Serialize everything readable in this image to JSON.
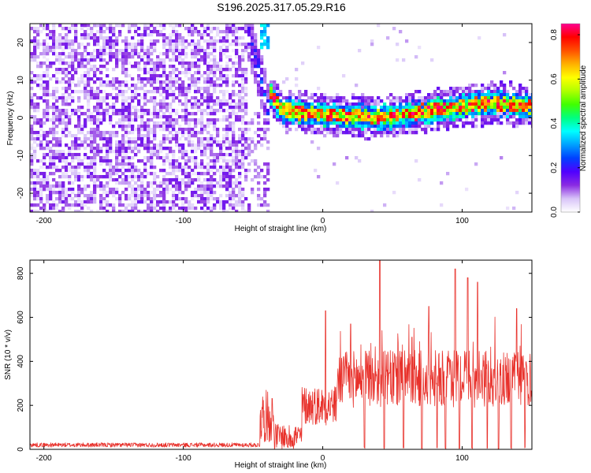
{
  "title": "S196.2025.317.05.29.R16",
  "chart_data": [
    {
      "type": "heatmap",
      "title": "S196.2025.317.05.29.R16",
      "xlabel": "Height of straight line (km)",
      "ylabel": "Frequency (Hz)",
      "xlim": [
        -210,
        150
      ],
      "ylim": [
        -25,
        25
      ],
      "x_ticks": [
        -200,
        -100,
        0,
        100
      ],
      "y_ticks": [
        -20,
        -10,
        0,
        10,
        20
      ],
      "colorbar": {
        "label": "Normalized spectral amplitude",
        "range": [
          0.0,
          0.85
        ],
        "ticks": [
          0.0,
          0.2,
          0.4,
          0.6,
          0.8
        ],
        "colors": [
          "#ffffff",
          "#d8c4f8",
          "#8a2be2",
          "#5000ff",
          "#0040ff",
          "#00a0ff",
          "#00ffff",
          "#00ff80",
          "#40ff00",
          "#b0ff00",
          "#ffff00",
          "#ffb000",
          "#ff5000",
          "#ff0000",
          "#ff0090"
        ]
      },
      "features": [
        {
          "name": "noise",
          "x_range": [
            -210,
            -55
          ],
          "freq_range": [
            -25,
            25
          ],
          "amplitude": [
            0.0,
            0.15
          ]
        },
        {
          "name": "transition_streak",
          "x_range": [
            -55,
            -40
          ],
          "freq_range": [
            -5,
            25
          ],
          "amplitude": [
            0.05,
            0.35
          ]
        },
        {
          "name": "central_line",
          "x_range": [
            -38,
            150
          ],
          "freq_center": [
            7,
            2,
            1,
            0,
            1,
            2,
            3,
            4,
            3
          ],
          "freq_center_x": [
            -38,
            -30,
            0,
            40,
            60,
            80,
            100,
            120,
            150
          ],
          "amplitude_peak": 0.85
        }
      ]
    },
    {
      "type": "line",
      "xlabel": "Height of straight line (km)",
      "ylabel": "SNR (10 * v/v)",
      "xlim": [
        -210,
        150
      ],
      "ylim": [
        0,
        860
      ],
      "x_ticks": [
        -200,
        -100,
        0,
        100
      ],
      "y_ticks": [
        0,
        200,
        400,
        600,
        800
      ],
      "color": "#e8312b",
      "segments": [
        {
          "x_range": [
            -210,
            -45
          ],
          "level": 20,
          "noise": 10
        },
        {
          "x_range": [
            -45,
            -35
          ],
          "level": 150,
          "noise": 120
        },
        {
          "x_range": [
            -35,
            -15
          ],
          "level": 60,
          "noise": 60
        },
        {
          "x_range": [
            -15,
            10
          ],
          "level": 200,
          "noise": 90
        },
        {
          "x_range": [
            10,
            150
          ],
          "level": 320,
          "noise": 130
        }
      ],
      "peaks": [
        {
          "x": 2,
          "y": 630
        },
        {
          "x": 20,
          "y": 570
        },
        {
          "x": 41,
          "y": 860
        },
        {
          "x": 64,
          "y": 510
        },
        {
          "x": 76,
          "y": 650
        },
        {
          "x": 95,
          "y": 820
        },
        {
          "x": 104,
          "y": 780
        },
        {
          "x": 111,
          "y": 760
        },
        {
          "x": 139,
          "y": 640
        }
      ],
      "dips_to_zero_at": [
        -25,
        30,
        44,
        58,
        71,
        82,
        88,
        98,
        107,
        118,
        126,
        135,
        145
      ]
    }
  ]
}
